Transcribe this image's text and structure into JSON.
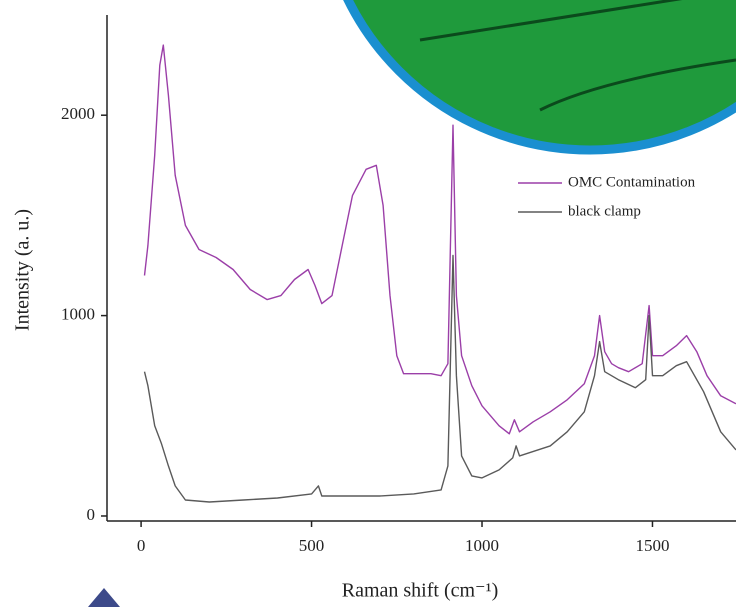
{
  "chart_data": {
    "type": "line",
    "x_label": "Raman shift (cm⁻¹)",
    "y_label": "Intensity (a. u.)",
    "xlim": [
      -100,
      1745
    ],
    "ylim": [
      -25,
      2500
    ],
    "xticks": [
      0,
      500,
      1000,
      1500
    ],
    "yticks": [
      0,
      1000,
      2000
    ],
    "legend": "upper right",
    "series": [
      {
        "name": "OMC Contamination",
        "color": "#9b3fa8",
        "x": [
          10,
          20,
          40,
          55,
          65,
          80,
          100,
          130,
          170,
          220,
          270,
          320,
          370,
          410,
          450,
          490,
          510,
          530,
          560,
          590,
          620,
          660,
          690,
          710,
          730,
          750,
          770,
          800,
          850,
          880,
          900,
          915,
          925,
          940,
          970,
          1000,
          1050,
          1080,
          1095,
          1110,
          1150,
          1200,
          1250,
          1300,
          1330,
          1345,
          1360,
          1380,
          1400,
          1430,
          1470,
          1490,
          1500,
          1530,
          1570,
          1600,
          1630,
          1660,
          1700,
          1745
        ],
        "values": [
          1200,
          1350,
          1800,
          2250,
          2350,
          2100,
          1700,
          1450,
          1330,
          1290,
          1230,
          1130,
          1080,
          1100,
          1180,
          1230,
          1150,
          1060,
          1100,
          1350,
          1600,
          1730,
          1750,
          1550,
          1100,
          800,
          710,
          710,
          710,
          700,
          760,
          1950,
          1100,
          800,
          650,
          550,
          450,
          410,
          480,
          420,
          470,
          520,
          580,
          660,
          800,
          1000,
          820,
          760,
          740,
          720,
          760,
          1050,
          800,
          800,
          850,
          900,
          820,
          700,
          600,
          560
        ]
      },
      {
        "name": "black clamp",
        "color": "#5a5a5a",
        "x": [
          10,
          20,
          40,
          60,
          80,
          100,
          130,
          200,
          300,
          400,
          500,
          520,
          530,
          600,
          700,
          800,
          880,
          900,
          915,
          925,
          940,
          970,
          1000,
          1050,
          1090,
          1100,
          1110,
          1200,
          1250,
          1300,
          1330,
          1345,
          1360,
          1400,
          1450,
          1480,
          1490,
          1500,
          1530,
          1570,
          1600,
          1650,
          1700,
          1745
        ],
        "values": [
          720,
          650,
          450,
          360,
          250,
          150,
          80,
          70,
          80,
          90,
          110,
          150,
          100,
          100,
          100,
          110,
          130,
          250,
          1300,
          700,
          300,
          200,
          190,
          230,
          290,
          350,
          300,
          350,
          420,
          520,
          700,
          870,
          720,
          680,
          640,
          680,
          1000,
          700,
          700,
          750,
          770,
          620,
          420,
          330
        ]
      }
    ]
  }
}
